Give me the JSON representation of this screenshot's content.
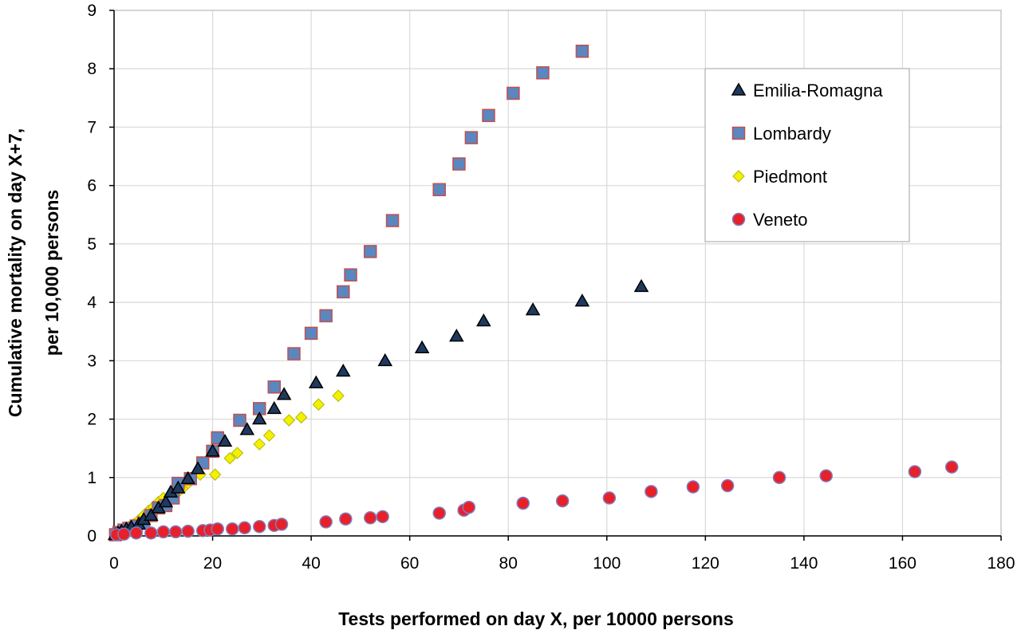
{
  "chart_data": {
    "type": "scatter",
    "title": "",
    "xlabel": "Tests performed on day X, per 10000 persons",
    "ylabel_line1": "Cumulative mortality on day X+7,",
    "ylabel_line2": "per 10,000 persons",
    "xlim": [
      0,
      180
    ],
    "ylim": [
      0,
      9
    ],
    "xticks": [
      "0",
      "20",
      "40",
      "60",
      "80",
      "100",
      "120",
      "140",
      "160",
      "180"
    ],
    "yticks": [
      "0",
      "1",
      "2",
      "3",
      "4",
      "5",
      "6",
      "7",
      "8",
      "9"
    ],
    "grid": true,
    "legend_position": "top-right",
    "series": [
      {
        "name": "Emilia-Romagna",
        "marker": "triangle",
        "color": "#1f3a5f",
        "stroke": "#000000",
        "points": [
          [
            0.2,
            0.02
          ],
          [
            0.8,
            0.05
          ],
          [
            1.5,
            0.08
          ],
          [
            2.5,
            0.12
          ],
          [
            3.5,
            0.15
          ],
          [
            5,
            0.2
          ],
          [
            6,
            0.28
          ],
          [
            7.5,
            0.35
          ],
          [
            9,
            0.48
          ],
          [
            10.5,
            0.58
          ],
          [
            11.5,
            0.75
          ],
          [
            13,
            0.82
          ],
          [
            15,
            0.98
          ],
          [
            17,
            1.15
          ],
          [
            20,
            1.45
          ],
          [
            22.5,
            1.62
          ],
          [
            27,
            1.82
          ],
          [
            29.5,
            2.0
          ],
          [
            32.5,
            2.18
          ],
          [
            34.5,
            2.42
          ],
          [
            41,
            2.62
          ],
          [
            46.5,
            2.82
          ],
          [
            55,
            3.0
          ],
          [
            62.5,
            3.22
          ],
          [
            69.5,
            3.42
          ],
          [
            75,
            3.68
          ],
          [
            85,
            3.87
          ],
          [
            95,
            4.02
          ],
          [
            107,
            4.27
          ]
        ]
      },
      {
        "name": "Lombardy",
        "marker": "square",
        "color": "#5b86c0",
        "stroke": "#c0504d",
        "points": [
          [
            0.3,
            0.02
          ],
          [
            1,
            0.06
          ],
          [
            2,
            0.1
          ],
          [
            3,
            0.13
          ],
          [
            4.5,
            0.17
          ],
          [
            6,
            0.22
          ],
          [
            7.5,
            0.35
          ],
          [
            9,
            0.48
          ],
          [
            10.5,
            0.52
          ],
          [
            12,
            0.65
          ],
          [
            13,
            0.9
          ],
          [
            15.5,
            0.98
          ],
          [
            18,
            1.25
          ],
          [
            20,
            1.45
          ],
          [
            21,
            1.68
          ],
          [
            25.5,
            1.98
          ],
          [
            29.5,
            2.18
          ],
          [
            32.5,
            2.55
          ],
          [
            36.5,
            3.12
          ],
          [
            40,
            3.47
          ],
          [
            43,
            3.77
          ],
          [
            46.5,
            4.18
          ],
          [
            48,
            4.47
          ],
          [
            52,
            4.87
          ],
          [
            56.5,
            5.4
          ],
          [
            66,
            5.93
          ],
          [
            70,
            6.37
          ],
          [
            72.5,
            6.82
          ],
          [
            76,
            7.2
          ],
          [
            81,
            7.58
          ],
          [
            87,
            7.93
          ],
          [
            95,
            8.3
          ]
        ]
      },
      {
        "name": "Piedmont",
        "marker": "diamond",
        "color": "#f2f200",
        "stroke": "#b5b500",
        "points": [
          [
            0.3,
            0.02
          ],
          [
            1,
            0.05
          ],
          [
            2,
            0.1
          ],
          [
            3,
            0.15
          ],
          [
            4,
            0.2
          ],
          [
            5,
            0.27
          ],
          [
            6,
            0.35
          ],
          [
            7,
            0.43
          ],
          [
            8,
            0.5
          ],
          [
            9,
            0.58
          ],
          [
            10,
            0.65
          ],
          [
            11.5,
            0.7
          ],
          [
            13,
            0.75
          ],
          [
            14,
            0.82
          ],
          [
            15,
            0.9
          ],
          [
            17.5,
            1.05
          ],
          [
            20.5,
            1.05
          ],
          [
            23.5,
            1.33
          ],
          [
            25,
            1.42
          ],
          [
            29.5,
            1.57
          ],
          [
            31.5,
            1.72
          ],
          [
            35.5,
            1.98
          ],
          [
            38,
            2.03
          ],
          [
            41.5,
            2.25
          ],
          [
            45.5,
            2.4
          ]
        ]
      },
      {
        "name": "Veneto",
        "marker": "circle",
        "color": "#e8202a",
        "stroke": "#7f7fbf",
        "points": [
          [
            0.5,
            0.02
          ],
          [
            2,
            0.03
          ],
          [
            4.5,
            0.05
          ],
          [
            7.5,
            0.05
          ],
          [
            10,
            0.07
          ],
          [
            12.5,
            0.07
          ],
          [
            15,
            0.08
          ],
          [
            18,
            0.09
          ],
          [
            19.5,
            0.1
          ],
          [
            21,
            0.12
          ],
          [
            24,
            0.12
          ],
          [
            26.5,
            0.14
          ],
          [
            29.5,
            0.16
          ],
          [
            32.5,
            0.18
          ],
          [
            34,
            0.2
          ],
          [
            43,
            0.24
          ],
          [
            47,
            0.29
          ],
          [
            52,
            0.31
          ],
          [
            54.5,
            0.33
          ],
          [
            66,
            0.39
          ],
          [
            71,
            0.44
          ],
          [
            72,
            0.49
          ],
          [
            83,
            0.56
          ],
          [
            91,
            0.6
          ],
          [
            100.5,
            0.65
          ],
          [
            109,
            0.76
          ],
          [
            117.5,
            0.84
          ],
          [
            124.5,
            0.86
          ],
          [
            135,
            1.0
          ],
          [
            144.5,
            1.03
          ],
          [
            162.5,
            1.1
          ],
          [
            170,
            1.18
          ]
        ]
      }
    ]
  }
}
